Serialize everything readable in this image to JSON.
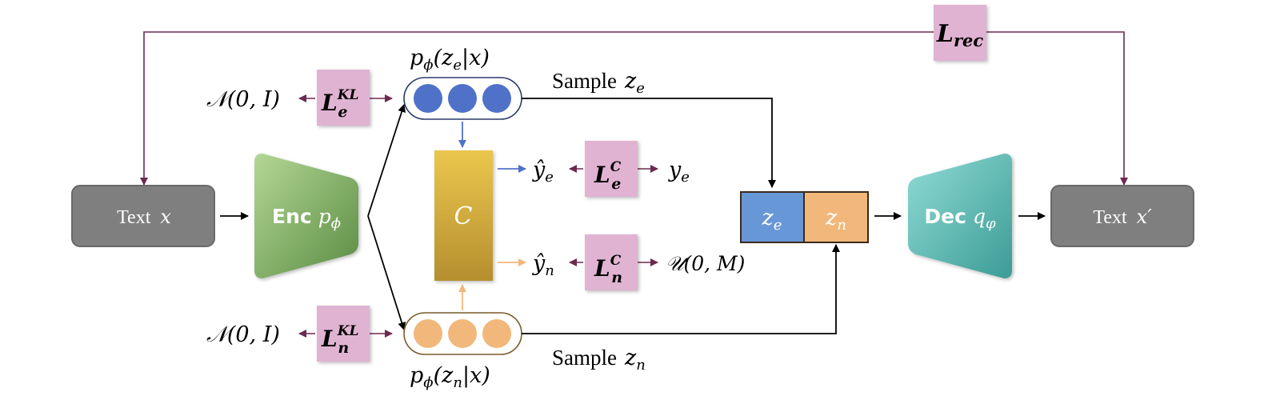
{
  "loss_rec": {
    "base": "L",
    "sub": "rec"
  },
  "loss_kl_e": {
    "base": "L",
    "sup": "KL",
    "sub": "e"
  },
  "loss_kl_n": {
    "base": "L",
    "sup": "KL",
    "sub": "n"
  },
  "loss_c_e": {
    "base": "L",
    "sup": "C",
    "sub": "e"
  },
  "loss_c_n": {
    "base": "L",
    "sup": "C",
    "sub": "n"
  },
  "prior_e": "𝒩(0, I)",
  "prior_n": "𝒩(0, I)",
  "posterior_e": {
    "pre": "p",
    "sub": "ϕ",
    "arg": "(z",
    "argsub": "e",
    "tail": "|x)"
  },
  "posterior_n": {
    "pre": "p",
    "sub": "ϕ",
    "arg": "(z",
    "argsub": "n",
    "tail": "|x)"
  },
  "sample_e": {
    "label": "Sample",
    "var": "z",
    "sub": "e"
  },
  "sample_n": {
    "label": "Sample",
    "var": "z",
    "sub": "n"
  },
  "classifier": "C",
  "yhat_e": {
    "var": "ŷ",
    "sub": "e"
  },
  "yhat_n": {
    "var": "ŷ",
    "sub": "n"
  },
  "target_e": {
    "var": "y",
    "sub": "e"
  },
  "target_n": "𝒰(0, M)",
  "input_text": {
    "label": "Text",
    "var": "x"
  },
  "output_text": {
    "label": "Text",
    "var": "x′"
  },
  "encoder": {
    "label": "Enc",
    "var": "p",
    "sub": "ϕ"
  },
  "decoder": {
    "label": "Dec",
    "var": "q",
    "sub": "φ"
  },
  "latent_e": {
    "var": "z",
    "sub": "e"
  },
  "latent_n": {
    "var": "z",
    "sub": "n"
  },
  "colors": {
    "loss_box": "#e0b3d3",
    "feedback_line": "#6b2a4e",
    "blue_node": "#4f72c8",
    "orange_node": "#f2b77a",
    "classifier_top": "#e8c24a",
    "classifier_bottom": "#b8912f",
    "encoder_top": "#a9cf88",
    "encoder_bottom": "#5d9146",
    "decoder_top": "#86d6d0",
    "decoder_bottom": "#3f9e98",
    "text_box": "#7f7f7f",
    "latent_e": "#6797d6",
    "latent_n": "#f2b77a"
  }
}
